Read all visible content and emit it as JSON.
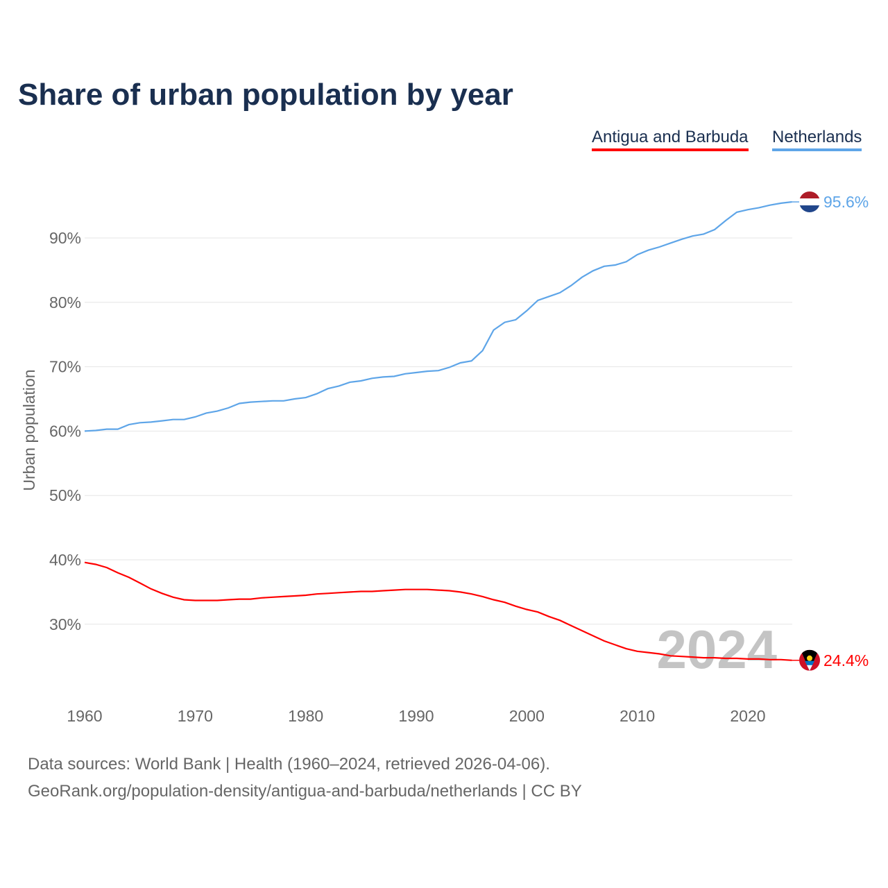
{
  "chart_data": {
    "type": "line",
    "title": "Share of urban population by year",
    "xlabel": "",
    "ylabel": "Urban population",
    "xlim": [
      1960,
      2024
    ],
    "ylim": [
      20,
      96
    ],
    "yticks": [
      30,
      40,
      50,
      60,
      70,
      80,
      90
    ],
    "ytick_labels": [
      "30%",
      "40%",
      "50%",
      "60%",
      "70%",
      "80%",
      "90%"
    ],
    "xticks": [
      1960,
      1970,
      1980,
      1990,
      2000,
      2010,
      2020
    ],
    "xtick_labels": [
      "1960",
      "1970",
      "1980",
      "1990",
      "2000",
      "2010",
      "2020"
    ],
    "grid": true,
    "legend_position": "top-right",
    "year_watermark": "2024",
    "x": [
      1960,
      1961,
      1962,
      1963,
      1964,
      1965,
      1966,
      1967,
      1968,
      1969,
      1970,
      1971,
      1972,
      1973,
      1974,
      1975,
      1976,
      1977,
      1978,
      1979,
      1980,
      1981,
      1982,
      1983,
      1984,
      1985,
      1986,
      1987,
      1988,
      1989,
      1990,
      1991,
      1992,
      1993,
      1994,
      1995,
      1996,
      1997,
      1998,
      1999,
      2000,
      2001,
      2002,
      2003,
      2004,
      2005,
      2006,
      2007,
      2008,
      2009,
      2010,
      2011,
      2012,
      2013,
      2014,
      2015,
      2016,
      2017,
      2018,
      2019,
      2020,
      2021,
      2022,
      2023,
      2024
    ],
    "series": [
      {
        "name": "Antigua and Barbuda",
        "color": "#ff0000",
        "end_label": "24.4%",
        "values": [
          39.6,
          39.3,
          38.8,
          38.0,
          37.3,
          36.4,
          35.5,
          34.8,
          34.2,
          33.8,
          33.7,
          33.7,
          33.7,
          33.8,
          33.9,
          33.9,
          34.1,
          34.2,
          34.3,
          34.4,
          34.5,
          34.7,
          34.8,
          34.9,
          35.0,
          35.1,
          35.1,
          35.2,
          35.3,
          35.4,
          35.4,
          35.4,
          35.3,
          35.2,
          35.0,
          34.7,
          34.3,
          33.8,
          33.4,
          32.8,
          32.3,
          31.9,
          31.2,
          30.6,
          29.8,
          29.0,
          28.2,
          27.4,
          26.8,
          26.2,
          25.8,
          25.6,
          25.4,
          25.1,
          25.0,
          24.9,
          24.8,
          24.8,
          24.7,
          24.7,
          24.6,
          24.6,
          24.5,
          24.5,
          24.4
        ]
      },
      {
        "name": "Netherlands",
        "color": "#5ea5e8",
        "end_label": "95.6%",
        "values": [
          60.0,
          60.1,
          60.3,
          60.3,
          61.0,
          61.3,
          61.4,
          61.6,
          61.8,
          61.8,
          62.2,
          62.8,
          63.1,
          63.6,
          64.3,
          64.5,
          64.6,
          64.7,
          64.7,
          65.0,
          65.2,
          65.8,
          66.6,
          67.0,
          67.6,
          67.8,
          68.2,
          68.4,
          68.5,
          68.9,
          69.1,
          69.3,
          69.4,
          69.9,
          70.6,
          70.9,
          72.5,
          75.7,
          76.9,
          77.3,
          78.7,
          80.3,
          80.9,
          81.5,
          82.6,
          83.9,
          84.9,
          85.6,
          85.8,
          86.3,
          87.4,
          88.1,
          88.6,
          89.2,
          89.8,
          90.3,
          90.6,
          91.3,
          92.7,
          94.0,
          94.4,
          94.7,
          95.1,
          95.4,
          95.6
        ]
      }
    ]
  },
  "footer": {
    "source": "Data sources: World Bank | Health (1960–2024, retrieved 2026-04-06).",
    "attribution": "GeoRank.org/population-density/antigua-and-barbuda/netherlands | CC BY"
  }
}
